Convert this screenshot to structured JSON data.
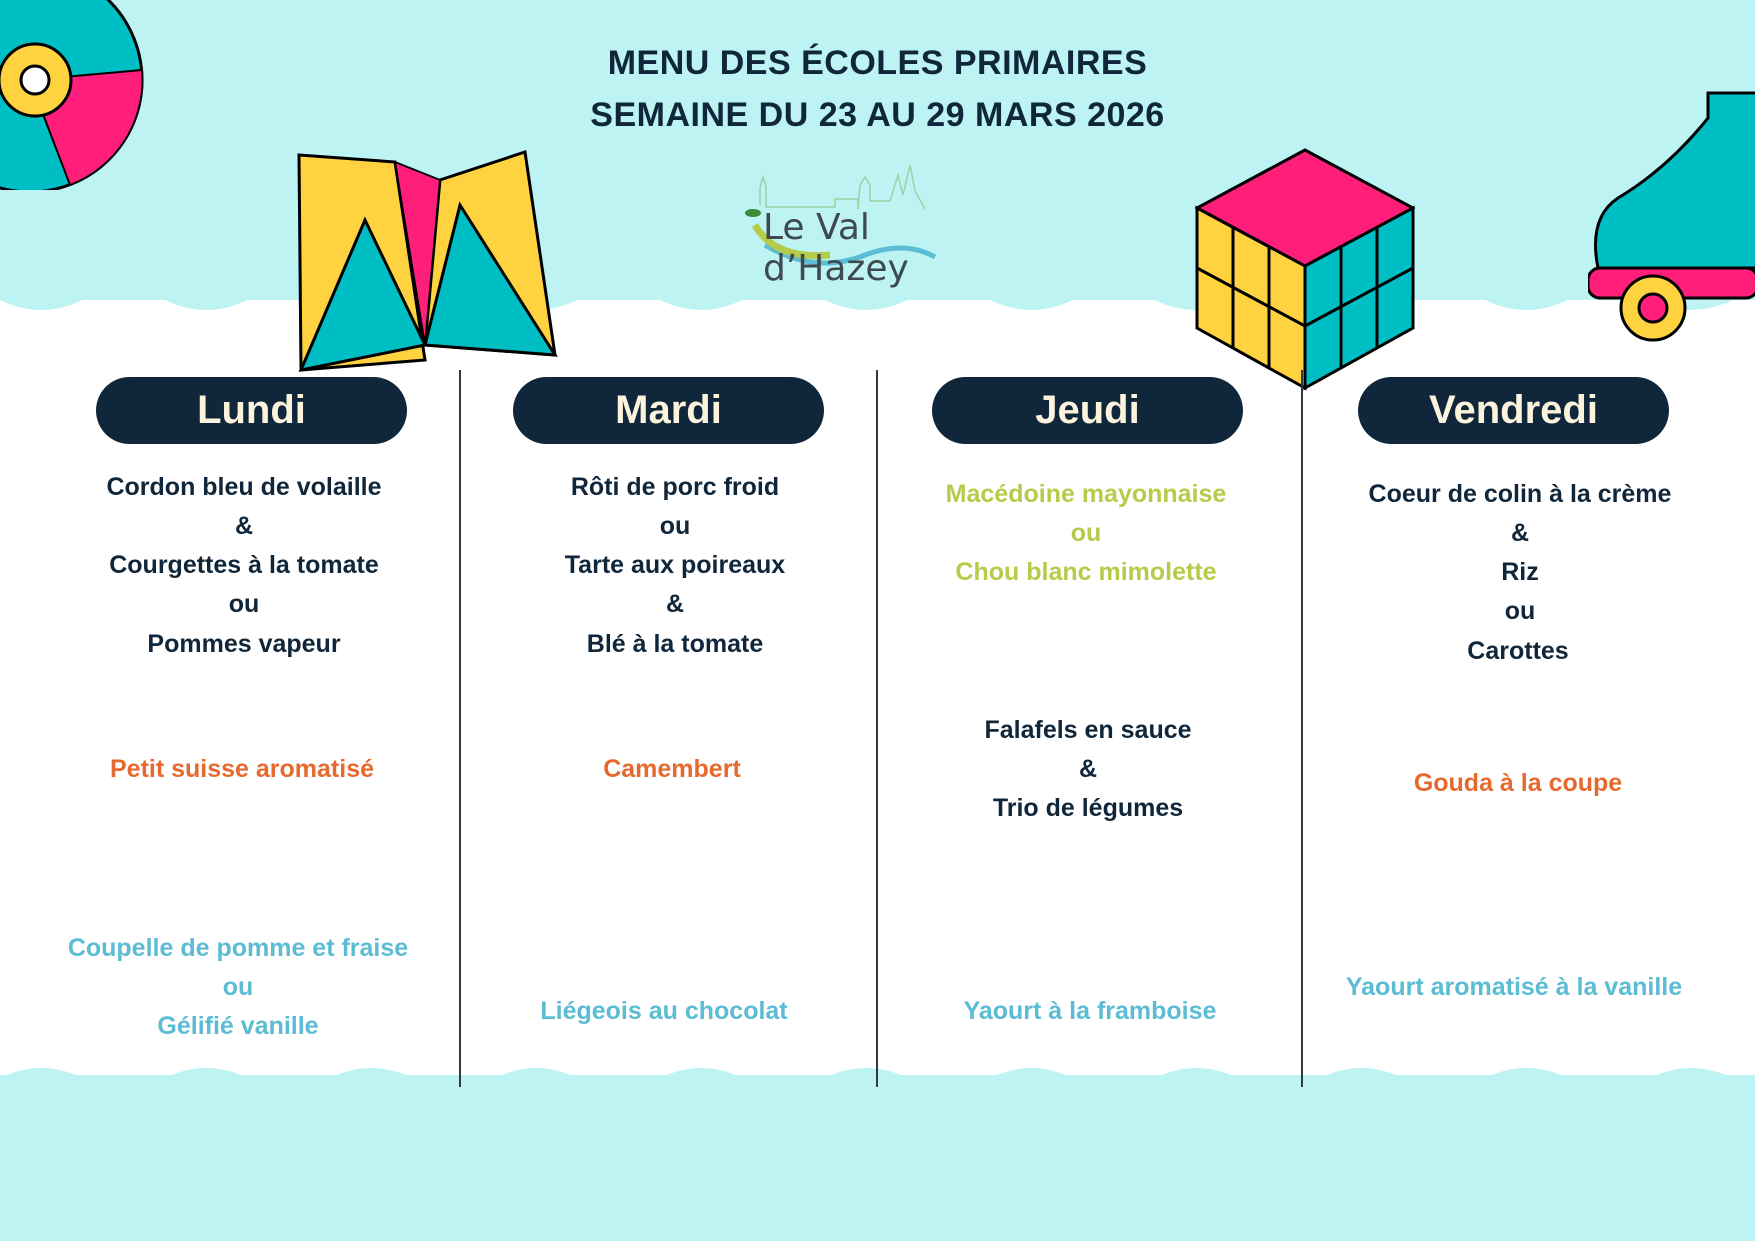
{
  "header": {
    "title_line1": "MENU DES ÉCOLES PRIMAIRES",
    "title_line2": "SEMAINE DU 23 AU 29 MARS 2026",
    "logo_text": "Le Val d’Hazey"
  },
  "colors": {
    "navy": "#10263a",
    "orange": "#e8692e",
    "green": "#b5cc4a",
    "blue": "#5bbcd3",
    "cyan_bg": "#bdf4f3"
  },
  "decorations": [
    "vinyl-record-icon",
    "paper-fortune-teller-icon",
    "rubiks-cube-icon",
    "roller-skate-icon"
  ],
  "days": [
    {
      "name": "Lundi",
      "main": [
        "Cordon bleu de volaille",
        "&",
        "Courgettes à la tomate",
        "ou",
        "Pommes vapeur"
      ],
      "cheese": "Petit suisse aromatisé",
      "dessert": [
        "Coupelle de pomme et fraise",
        "ou",
        "Gélifié vanille"
      ]
    },
    {
      "name": "Mardi",
      "main": [
        "Rôti de porc froid",
        "ou",
        "Tarte aux poireaux",
        "&",
        "Blé à la tomate"
      ],
      "cheese": "Camembert",
      "dessert": [
        "Liégeois au chocolat"
      ]
    },
    {
      "name": "Jeudi",
      "starter": [
        "Macédoine mayonnaise",
        "ou",
        "Chou blanc mimolette"
      ],
      "main": [
        "Falafels en sauce",
        "&",
        "Trio de légumes"
      ],
      "dessert": [
        "Yaourt à la framboise"
      ]
    },
    {
      "name": "Vendredi",
      "main": [
        "Coeur de colin à la crème",
        "&",
        "Riz",
        "ou",
        "Carottes"
      ],
      "cheese": "Gouda à la coupe",
      "dessert": [
        "Yaourt aromatisé à la vanille"
      ]
    }
  ]
}
